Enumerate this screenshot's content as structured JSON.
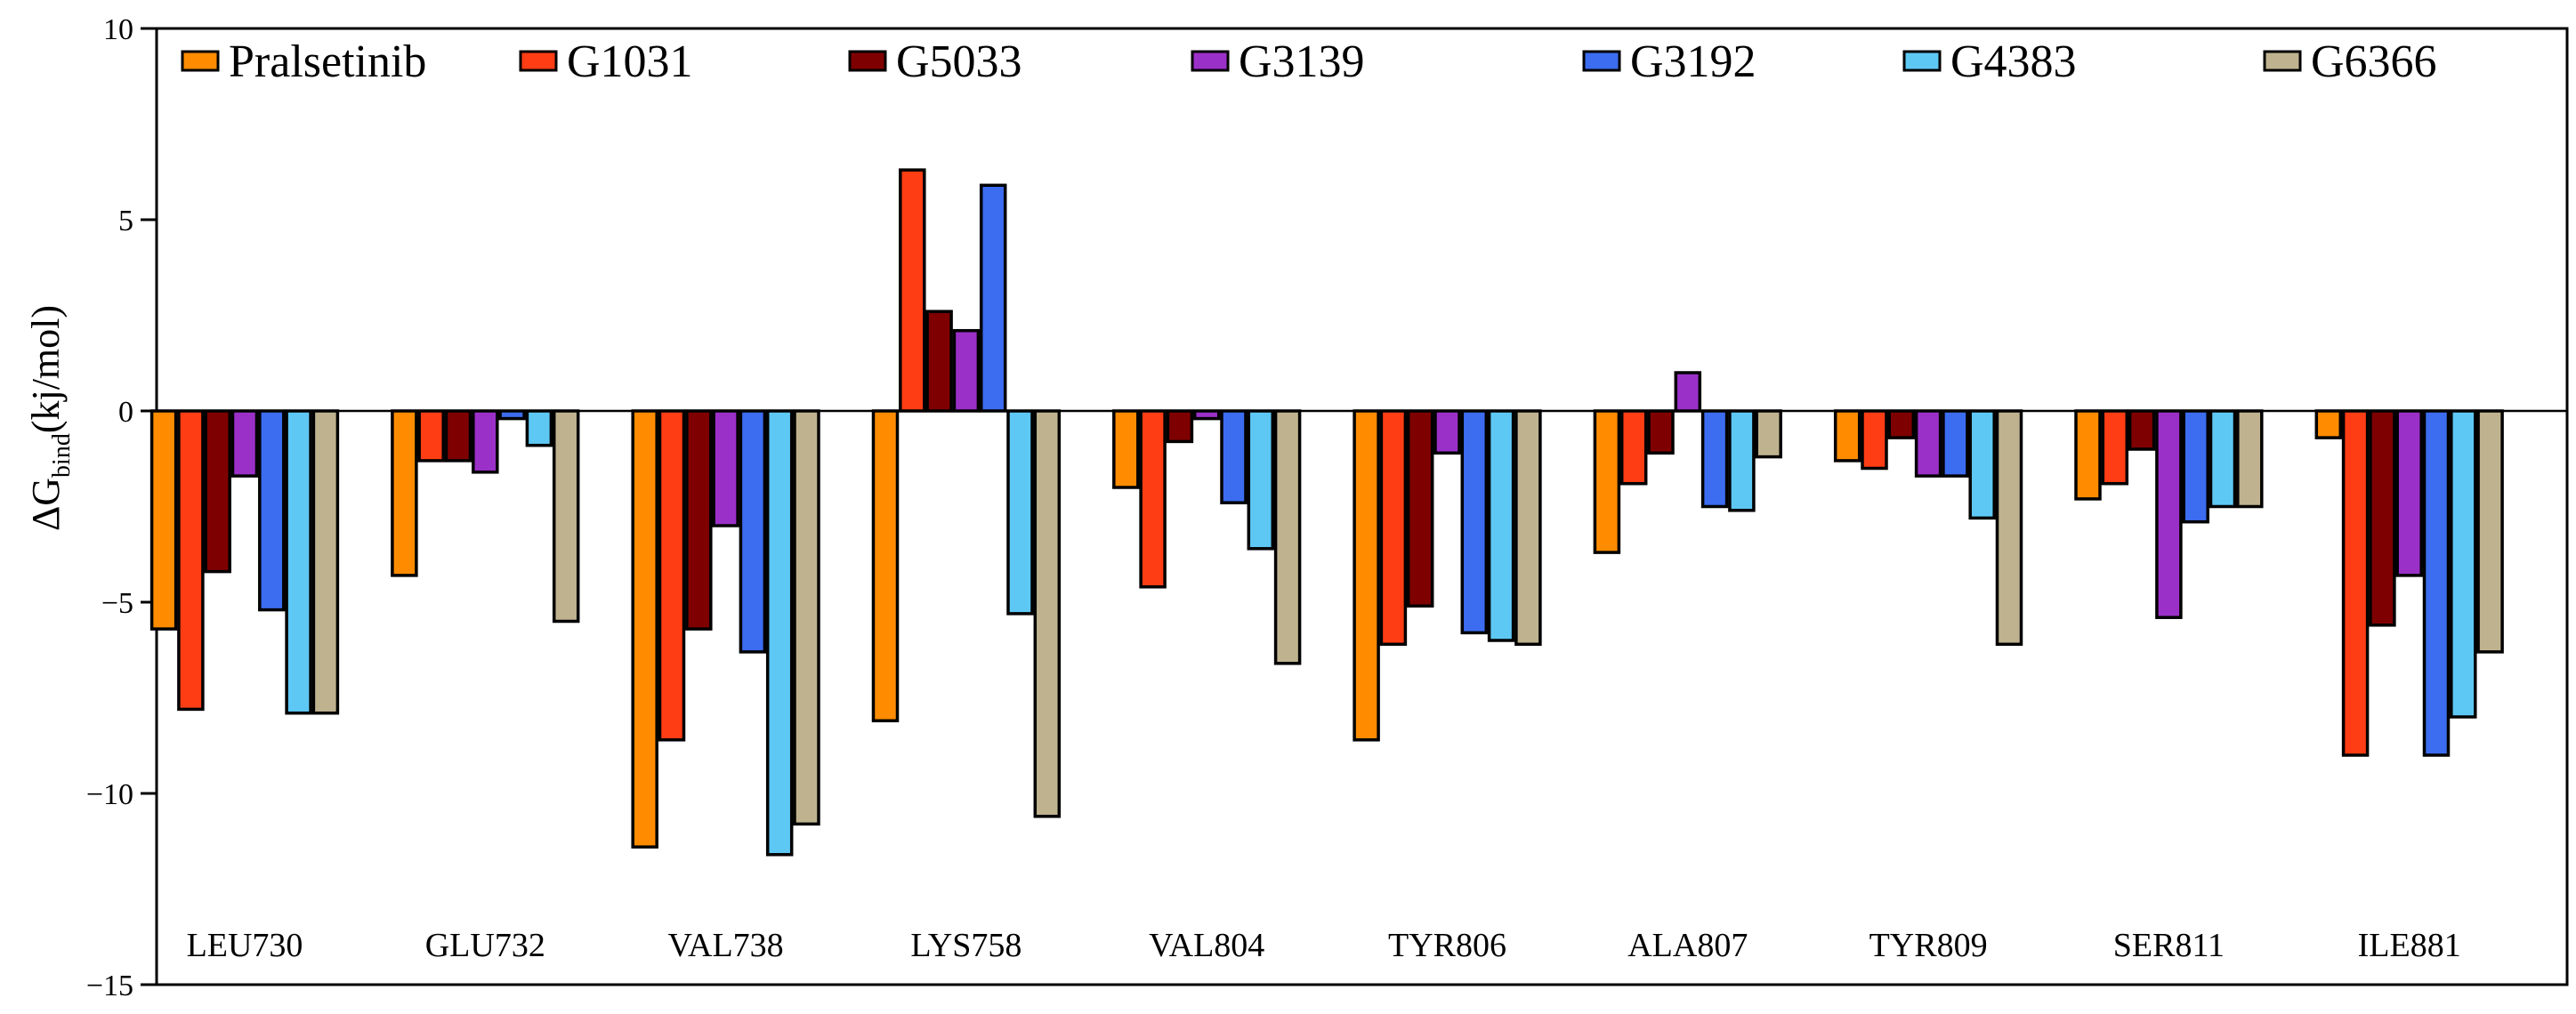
{
  "chart_data": {
    "type": "bar",
    "title": "",
    "xlabel": "",
    "ylabel": {
      "prefix": "ΔG",
      "subscript": "bind",
      "suffix": "(kj/mol)"
    },
    "ylim": [
      -15,
      10
    ],
    "yticks": [
      10,
      5,
      0,
      -5,
      -10,
      -15
    ],
    "ytick_labels": [
      "10",
      "5",
      "0",
      "−5",
      "−10",
      "−15"
    ],
    "grid": false,
    "legend_position": "top",
    "categories": [
      "LEU730",
      "GLU732",
      "VAL738",
      "LYS758",
      "VAL804",
      "TYR806",
      "ALA807",
      "TYR809",
      "SER811",
      "ILE881"
    ],
    "series": [
      {
        "name": "Pralsetinib",
        "color": "#FF8C00",
        "values": [
          -5.7,
          -4.3,
          -11.4,
          -8.1,
          -2.0,
          -8.6,
          -3.7,
          -1.3,
          -2.3,
          -0.7
        ]
      },
      {
        "name": "G1031",
        "color": "#FF3D14",
        "values": [
          -7.8,
          -1.3,
          -8.6,
          6.3,
          -4.6,
          -6.1,
          -1.9,
          -1.5,
          -1.9,
          -9.0
        ]
      },
      {
        "name": "G5033",
        "color": "#7F0000",
        "values": [
          -4.2,
          -1.3,
          -5.7,
          2.6,
          -0.8,
          -5.1,
          -1.1,
          -0.7,
          -1.0,
          -5.6
        ]
      },
      {
        "name": "G3139",
        "color": "#9B30C8",
        "values": [
          -1.7,
          -1.6,
          -3.0,
          2.1,
          -0.2,
          -1.1,
          1.0,
          -1.7,
          -5.4,
          -4.3
        ]
      },
      {
        "name": "G3192",
        "color": "#3C6CF0",
        "values": [
          -5.2,
          -0.2,
          -6.3,
          5.9,
          -2.4,
          -5.8,
          -2.5,
          -1.7,
          -2.9,
          -9.0
        ]
      },
      {
        "name": "G4383",
        "color": "#5EC8F5",
        "values": [
          -7.9,
          -0.9,
          -11.6,
          -5.3,
          -3.6,
          -6.0,
          -2.6,
          -2.8,
          -2.5,
          -8.0
        ]
      },
      {
        "name": "G6366",
        "color": "#BFB38F",
        "values": [
          -7.9,
          -5.5,
          -10.8,
          -10.6,
          -6.6,
          -6.1,
          -1.2,
          -6.1,
          -2.5,
          -6.3
        ]
      }
    ]
  }
}
